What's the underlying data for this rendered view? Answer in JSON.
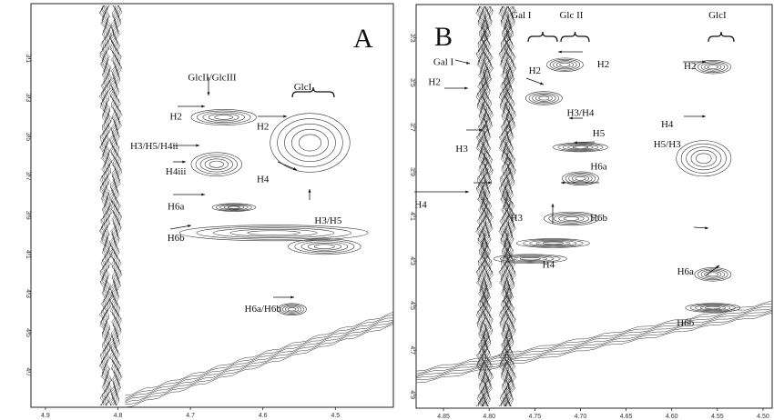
{
  "chart_data": [
    {
      "type": "heatmap",
      "panel_label": "A",
      "xlim": [
        4.92,
        4.42
      ],
      "ylim": [
        2.82,
        4.88
      ],
      "x_ticks": [
        "4.9",
        "4.8",
        "4.7",
        "4.6",
        "4.5"
      ],
      "y_ticks": [
        "3.1",
        "3.3",
        "3.5",
        "3.7",
        "3.9",
        "4.1",
        "4.3",
        "4.5",
        "4.7"
      ],
      "vertical_ridges": [
        {
          "x": 4.81
        }
      ],
      "diagonal": [
        [
          4.79,
          4.85
        ],
        [
          4.42,
          4.43
        ]
      ],
      "cross_peaks": [
        {
          "x": 4.654,
          "y": 3.4,
          "dx": 0.045,
          "dy": 0.04
        },
        {
          "x": 4.664,
          "y": 3.64,
          "dx": 0.035,
          "dy": 0.06
        },
        {
          "x": 4.535,
          "y": 3.53,
          "dx": 0.055,
          "dy": 0.15
        },
        {
          "x": 4.64,
          "y": 3.86,
          "dx": 0.03,
          "dy": 0.02
        },
        {
          "x": 4.585,
          "y": 3.99,
          "dx": 0.13,
          "dy": 0.04
        },
        {
          "x": 4.515,
          "y": 4.06,
          "dx": 0.05,
          "dy": 0.04
        },
        {
          "x": 4.56,
          "y": 4.38,
          "dx": 0.02,
          "dy": 0.03
        }
      ],
      "annotations": [
        {
          "text": "GlcII/GlcIII",
          "x": 4.67,
          "y": 3.2
        },
        {
          "text": "GlcI",
          "x": 4.545,
          "y": 3.25
        },
        {
          "text": "H2",
          "x": 4.72,
          "y": 3.4
        },
        {
          "text": "H3/H5/H4ii",
          "x": 4.75,
          "y": 3.55
        },
        {
          "text": "H4iii",
          "x": 4.72,
          "y": 3.68
        },
        {
          "text": "H6a",
          "x": 4.72,
          "y": 3.86
        },
        {
          "text": "H6b",
          "x": 4.72,
          "y": 4.02
        },
        {
          "text": "H2",
          "x": 4.6,
          "y": 3.45
        },
        {
          "text": "H4",
          "x": 4.6,
          "y": 3.72
        },
        {
          "text": "H3/H5",
          "x": 4.51,
          "y": 3.93
        },
        {
          "text": "H6a/H6b",
          "x": 4.6,
          "y": 4.38
        }
      ]
    },
    {
      "type": "heatmap",
      "panel_label": "B",
      "xlim": [
        4.88,
        4.49
      ],
      "ylim": [
        3.15,
        4.96
      ],
      "x_ticks": [
        "4.85",
        "4.80",
        "4.75",
        "4.70",
        "4.65",
        "4.60",
        "4.55",
        "4.50"
      ],
      "y_ticks": [
        "3.3",
        "3.5",
        "3.7",
        "3.9",
        "4.1",
        "4.3",
        "4.5",
        "4.7",
        "4.9"
      ],
      "vertical_ridges": [
        {
          "x": 4.805
        },
        {
          "x": 4.78
        }
      ],
      "diagonal": [
        [
          4.88,
          4.82
        ],
        [
          4.49,
          4.51
        ]
      ],
      "cross_peaks": [
        {
          "x": 4.717,
          "y": 3.42,
          "dx": 0.02,
          "dy": 0.03
        },
        {
          "x": 4.74,
          "y": 3.57,
          "dx": 0.02,
          "dy": 0.03
        },
        {
          "x": 4.7,
          "y": 3.79,
          "dx": 0.03,
          "dy": 0.02
        },
        {
          "x": 4.7,
          "y": 3.93,
          "dx": 0.02,
          "dy": 0.03
        },
        {
          "x": 4.71,
          "y": 4.11,
          "dx": 0.03,
          "dy": 0.03
        },
        {
          "x": 4.73,
          "y": 4.22,
          "dx": 0.04,
          "dy": 0.02
        },
        {
          "x": 4.755,
          "y": 4.29,
          "dx": 0.04,
          "dy": 0.02
        },
        {
          "x": 4.555,
          "y": 3.43,
          "dx": 0.02,
          "dy": 0.03
        },
        {
          "x": 4.565,
          "y": 3.84,
          "dx": 0.03,
          "dy": 0.08
        },
        {
          "x": 4.555,
          "y": 4.36,
          "dx": 0.02,
          "dy": 0.03
        },
        {
          "x": 4.555,
          "y": 4.51,
          "dx": 0.03,
          "dy": 0.02
        }
      ],
      "annotations": [
        {
          "text": "Gal I",
          "x": 4.765,
          "y": 3.2
        },
        {
          "text": "Glc II",
          "x": 4.71,
          "y": 3.2
        },
        {
          "text": "GlcI",
          "x": 4.55,
          "y": 3.2
        },
        {
          "text": "Gal I",
          "x": 4.85,
          "y": 3.41
        },
        {
          "text": "H2",
          "x": 4.86,
          "y": 3.5
        },
        {
          "text": "H2",
          "x": 4.75,
          "y": 3.45
        },
        {
          "text": "H2",
          "x": 4.675,
          "y": 3.42
        },
        {
          "text": "H2",
          "x": 4.58,
          "y": 3.43
        },
        {
          "text": "H3/H4",
          "x": 4.7,
          "y": 3.64
        },
        {
          "text": "H5",
          "x": 4.68,
          "y": 3.73
        },
        {
          "text": "H4",
          "x": 4.605,
          "y": 3.69
        },
        {
          "text": "H5/H3",
          "x": 4.605,
          "y": 3.78
        },
        {
          "text": "H3",
          "x": 4.83,
          "y": 3.8
        },
        {
          "text": "H6a",
          "x": 4.68,
          "y": 3.88
        },
        {
          "text": "H6b",
          "x": 4.68,
          "y": 4.11
        },
        {
          "text": "H4",
          "x": 4.875,
          "y": 4.05
        },
        {
          "text": "H3",
          "x": 4.77,
          "y": 4.11
        },
        {
          "text": "H4",
          "x": 4.735,
          "y": 4.32
        },
        {
          "text": "H6a",
          "x": 4.585,
          "y": 4.35
        },
        {
          "text": "H6b",
          "x": 4.585,
          "y": 4.58
        }
      ]
    }
  ]
}
